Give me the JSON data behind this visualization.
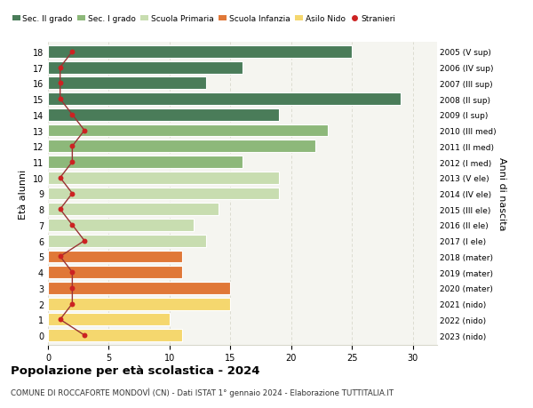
{
  "ages": [
    18,
    17,
    16,
    15,
    14,
    13,
    12,
    11,
    10,
    9,
    8,
    7,
    6,
    5,
    4,
    3,
    2,
    1,
    0
  ],
  "right_labels": [
    "2005 (V sup)",
    "2006 (IV sup)",
    "2007 (III sup)",
    "2008 (II sup)",
    "2009 (I sup)",
    "2010 (III med)",
    "2011 (II med)",
    "2012 (I med)",
    "2013 (V ele)",
    "2014 (IV ele)",
    "2015 (III ele)",
    "2016 (II ele)",
    "2017 (I ele)",
    "2018 (mater)",
    "2019 (mater)",
    "2020 (mater)",
    "2021 (nido)",
    "2022 (nido)",
    "2023 (nido)"
  ],
  "bar_values": [
    25,
    16,
    13,
    29,
    19,
    23,
    22,
    16,
    19,
    19,
    14,
    12,
    13,
    11,
    11,
    15,
    15,
    10,
    11
  ],
  "bar_colors": [
    "#4a7c59",
    "#4a7c59",
    "#4a7c59",
    "#4a7c59",
    "#4a7c59",
    "#8db87a",
    "#8db87a",
    "#8db87a",
    "#c8ddb0",
    "#c8ddb0",
    "#c8ddb0",
    "#c8ddb0",
    "#c8ddb0",
    "#e07838",
    "#e07838",
    "#e07838",
    "#f5d76e",
    "#f5d76e",
    "#f5d76e"
  ],
  "stranieri_values": [
    2,
    1,
    1,
    1,
    2,
    3,
    2,
    2,
    1,
    2,
    1,
    2,
    3,
    1,
    2,
    2,
    2,
    1,
    3
  ],
  "stranieri_color": "#cc2222",
  "stranieri_line_color": "#993333",
  "title": "Popolazione per età scolastica - 2024",
  "subtitle": "COMUNE DI ROCCAFORTE MONDOVÌ (CN) - Dati ISTAT 1° gennaio 2024 - Elaborazione TUTTITALIA.IT",
  "ylabel": "Età alunni",
  "right_ylabel": "Anni di nascita",
  "xlim": [
    0,
    32
  ],
  "background_color": "#ffffff",
  "plot_bg_color": "#f5f5f0",
  "grid_color": "#d8d8cc",
  "legend_labels": [
    "Sec. II grado",
    "Sec. I grado",
    "Scuola Primaria",
    "Scuola Infanzia",
    "Asilo Nido",
    "Stranieri"
  ],
  "legend_colors": [
    "#4a7c59",
    "#8db87a",
    "#c8ddb0",
    "#e07838",
    "#f5d76e",
    "#cc2222"
  ]
}
